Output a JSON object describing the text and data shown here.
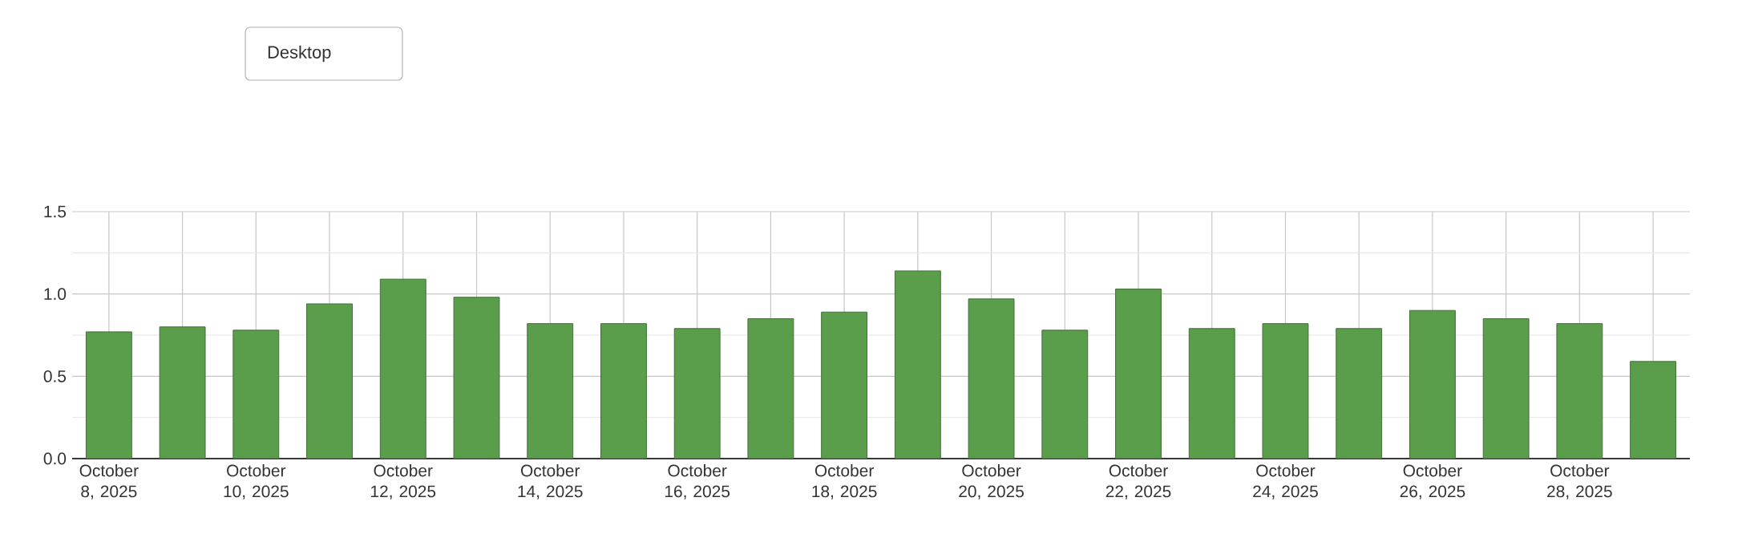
{
  "chart_data": {
    "type": "bar",
    "categories": [
      "October 8, 2025",
      null,
      "October 10, 2025",
      null,
      "October 12, 2025",
      null,
      "October 14, 2025",
      null,
      "October 16, 2025",
      null,
      "October 18, 2025",
      null,
      "October 20, 2025",
      null,
      "October 22, 2025",
      null,
      "October 24, 2025",
      null,
      "October 26, 2025",
      null,
      "October 28, 2025",
      null
    ],
    "values": [
      0.77,
      0.8,
      0.78,
      0.94,
      1.09,
      0.98,
      0.82,
      0.82,
      0.79,
      0.85,
      0.89,
      1.14,
      0.97,
      0.78,
      1.03,
      0.79,
      0.82,
      0.79,
      0.9,
      0.85,
      0.82,
      0.59
    ],
    "color": "#5a9e4b",
    "ylim": [
      0,
      1.5
    ],
    "yticks": [
      {
        "value": 0,
        "label": "0.0"
      },
      {
        "value": 0.5,
        "label": "0.5"
      },
      {
        "value": 1,
        "label": "1.0"
      },
      {
        "value": 1.5,
        "label": "1.5"
      }
    ],
    "grid": true,
    "annotations": [
      "Desktop"
    ]
  }
}
